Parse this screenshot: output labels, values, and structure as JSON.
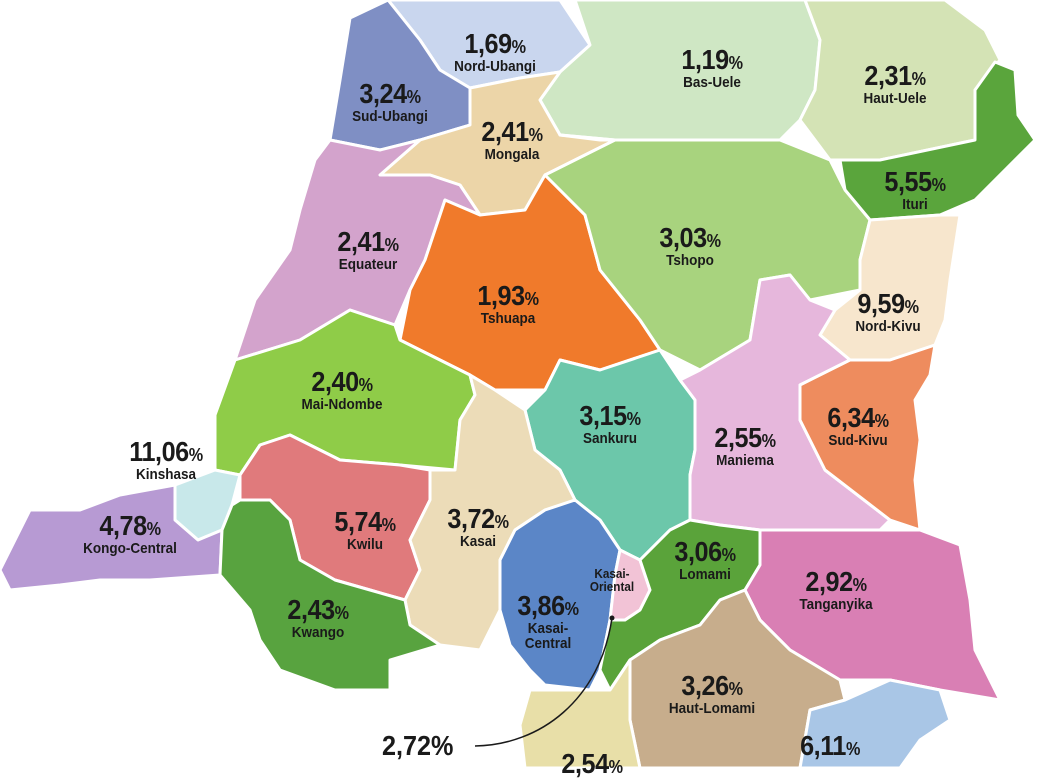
{
  "regions": [
    {
      "id": "nord-ubangi",
      "name": "Nord-Ubangi",
      "value": "1,69",
      "color": "#c9d6ee"
    },
    {
      "id": "sud-ubangi",
      "name": "Sud-Ubangi",
      "value": "3,24",
      "color": "#7f8fc4"
    },
    {
      "id": "bas-uele",
      "name": "Bas-Uele",
      "value": "1,19",
      "color": "#cfe7c4"
    },
    {
      "id": "haut-uele",
      "name": "Haut-Uele",
      "value": "2,31",
      "color": "#d4e3b5"
    },
    {
      "id": "mongala",
      "name": "Mongala",
      "value": "2,41",
      "color": "#ecd5a8"
    },
    {
      "id": "ituri",
      "name": "Ituri",
      "value": "5,55",
      "color": "#5aa53c"
    },
    {
      "id": "equateur",
      "name": "Equateur",
      "value": "2,41",
      "color": "#d3a3cc"
    },
    {
      "id": "tshuapa",
      "name": "Tshuapa",
      "value": "1,93",
      "color": "#f07a2b"
    },
    {
      "id": "tshopo",
      "name": "Tshopo",
      "value": "3,03",
      "color": "#a8d37e"
    },
    {
      "id": "nord-kivu",
      "name": "Nord-Kivu",
      "value": "9,59",
      "color": "#f7e6cd"
    },
    {
      "id": "mai-ndombe",
      "name": "Mai-Ndombe",
      "value": "2,40",
      "color": "#8fcc48"
    },
    {
      "id": "sankuru",
      "name": "Sankuru",
      "value": "3,15",
      "color": "#6cc7aa"
    },
    {
      "id": "maniema",
      "name": "Maniema",
      "value": "2,55",
      "color": "#e6b7dc"
    },
    {
      "id": "sud-kivu",
      "name": "Sud-Kivu",
      "value": "6,34",
      "color": "#ee8c5e"
    },
    {
      "id": "kinshasa",
      "name": "Kinshasa",
      "value": "11,06",
      "color": "#c8e8ea"
    },
    {
      "id": "kwilu",
      "name": "Kwilu",
      "value": "5,74",
      "color": "#e07a7c"
    },
    {
      "id": "kasai",
      "name": "Kasai",
      "value": "3,72",
      "color": "#ecdcb8"
    },
    {
      "id": "kongo-central",
      "name": "Kongo-Central",
      "value": "4,78",
      "color": "#b79ad3"
    },
    {
      "id": "kwango",
      "name": "Kwango",
      "value": "2,43",
      "color": "#58a33f"
    },
    {
      "id": "kasai-central",
      "name": "Kasai-\nCentral",
      "value": "3,86",
      "color": "#5b86c7"
    },
    {
      "id": "kasai-oriental",
      "name": "Kasai-\nOriental",
      "value": "",
      "color": "#f2c3d6"
    },
    {
      "id": "lomami",
      "name": "Lomami",
      "value": "3,06",
      "color": "#5aa33a"
    },
    {
      "id": "tanganyika",
      "name": "Tanganyika",
      "value": "2,92",
      "color": "#d97fb4"
    },
    {
      "id": "haut-lomami",
      "name": "Haut-Lomami",
      "value": "3,26",
      "color": "#c7ad8c"
    },
    {
      "id": "lualaba",
      "name": "",
      "value": "2,54",
      "color": "#e8dfa8"
    },
    {
      "id": "haut-katanga",
      "name": "",
      "value": "6,11",
      "color": "#a9c6e6"
    }
  ],
  "percent_sign": "%",
  "callout": {
    "value": "2,72%"
  }
}
